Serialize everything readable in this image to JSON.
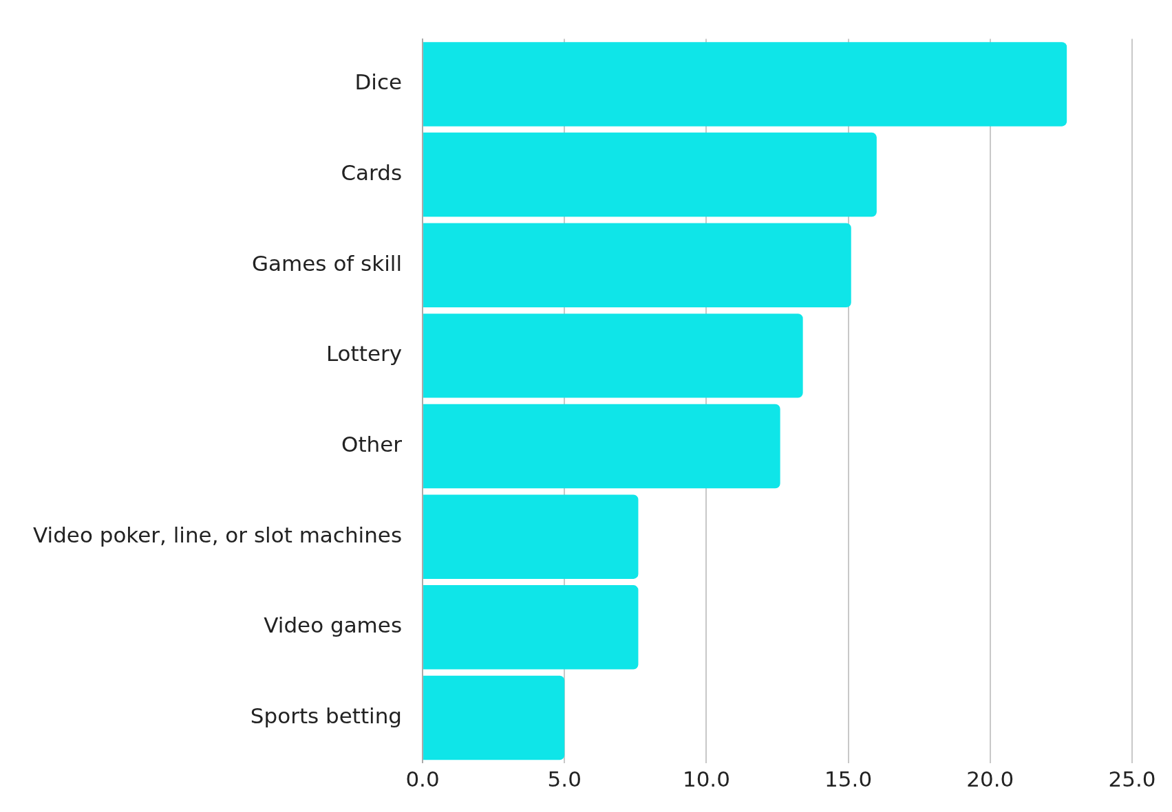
{
  "chart_data": {
    "type": "bar",
    "orientation": "horizontal",
    "categories": [
      "Dice",
      "Cards",
      "Games of skill",
      "Lottery",
      "Other",
      "Video poker, line, or slot machines",
      "Video games",
      "Sports betting"
    ],
    "values": [
      22.7,
      16.0,
      15.1,
      13.4,
      12.6,
      7.6,
      7.6,
      5.0
    ],
    "color": "#0fe5e8",
    "xlim": [
      0,
      25
    ],
    "xticks": [
      {
        "value": 0,
        "label": "0.0"
      },
      {
        "value": 5,
        "label": "5.0"
      },
      {
        "value": 10,
        "label": "10.0"
      },
      {
        "value": 15,
        "label": "15.0"
      },
      {
        "value": 20,
        "label": "20.0"
      },
      {
        "value": 25,
        "label": "25.0"
      }
    ],
    "grid": "x",
    "legend": false
  }
}
